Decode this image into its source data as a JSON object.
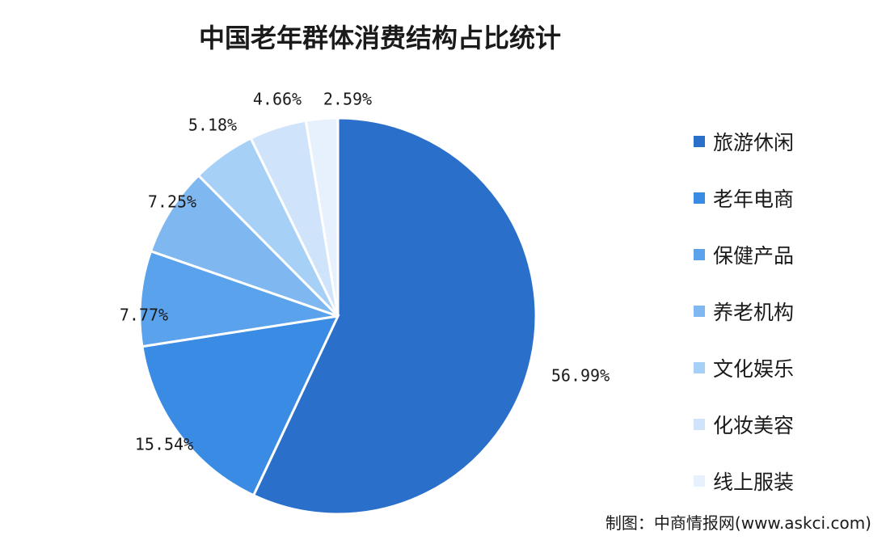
{
  "chart_data": {
    "type": "pie",
    "title": "中国老年群体消费结构占比统计",
    "categories": [
      "旅游休闲",
      "老年电商",
      "保健产品",
      "养老机构",
      "文化娱乐",
      "化妆美容",
      "线上服装"
    ],
    "values": [
      56.99,
      15.54,
      7.77,
      7.25,
      5.18,
      4.66,
      2.59
    ],
    "value_labels": [
      "56.99%",
      "15.54%",
      "7.77%",
      "7.25%",
      "5.18%",
      "4.66%",
      "2.59%"
    ],
    "colors": [
      "#2a6fc9",
      "#3a8be3",
      "#5aa3ec",
      "#7fb8f0",
      "#a6d0f6",
      "#cfe4fb",
      "#e6f1fd"
    ],
    "legend_position": "right"
  },
  "source": "制图：中商情报网(www.askci.com)"
}
